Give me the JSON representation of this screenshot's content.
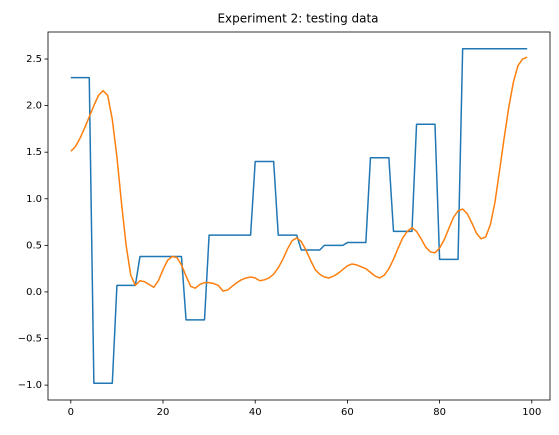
{
  "chart_data": {
    "type": "line",
    "title": "Experiment 2: testing data",
    "x": [
      0,
      1,
      2,
      3,
      4,
      5,
      6,
      7,
      8,
      9,
      10,
      11,
      12,
      13,
      14,
      15,
      16,
      17,
      18,
      19,
      20,
      21,
      22,
      23,
      24,
      25,
      26,
      27,
      28,
      29,
      30,
      31,
      32,
      33,
      34,
      35,
      36,
      37,
      38,
      39,
      40,
      41,
      42,
      43,
      44,
      45,
      46,
      47,
      48,
      49,
      50,
      51,
      52,
      53,
      54,
      55,
      56,
      57,
      58,
      59,
      60,
      61,
      62,
      63,
      64,
      65,
      66,
      67,
      68,
      69,
      70,
      71,
      72,
      73,
      74,
      75,
      76,
      77,
      78,
      79,
      80,
      81,
      82,
      83,
      84,
      85,
      86,
      87,
      88,
      89,
      90,
      91,
      92,
      93,
      94,
      95,
      96,
      97,
      98,
      99
    ],
    "series": [
      {
        "color": "#1f77b4",
        "values": [
          2.3,
          2.3,
          2.3,
          2.3,
          2.3,
          -0.98,
          -0.98,
          -0.98,
          -0.98,
          -0.98,
          0.07,
          0.07,
          0.07,
          0.07,
          0.07,
          0.38,
          0.38,
          0.38,
          0.38,
          0.38,
          0.38,
          0.38,
          0.38,
          0.38,
          0.38,
          -0.3,
          -0.3,
          -0.3,
          -0.3,
          -0.3,
          0.61,
          0.61,
          0.61,
          0.61,
          0.61,
          0.61,
          0.61,
          0.61,
          0.61,
          0.61,
          1.4,
          1.4,
          1.4,
          1.4,
          1.4,
          0.61,
          0.61,
          0.61,
          0.61,
          0.61,
          0.45,
          0.45,
          0.45,
          0.45,
          0.45,
          0.5,
          0.5,
          0.5,
          0.5,
          0.5,
          0.53,
          0.53,
          0.53,
          0.53,
          0.53,
          1.44,
          1.44,
          1.44,
          1.44,
          1.44,
          0.65,
          0.65,
          0.65,
          0.65,
          0.65,
          1.8,
          1.8,
          1.8,
          1.8,
          1.8,
          0.35,
          0.35,
          0.35,
          0.35,
          0.35,
          2.61,
          2.61,
          2.61,
          2.61,
          2.61,
          2.61,
          2.61,
          2.61,
          2.61,
          2.61,
          2.61,
          2.61,
          2.61,
          2.61,
          2.61
        ]
      },
      {
        "color": "#ff7f0e",
        "values": [
          1.51,
          1.56,
          1.65,
          1.76,
          1.88,
          2.0,
          2.11,
          2.16,
          2.11,
          1.85,
          1.45,
          0.95,
          0.5,
          0.18,
          0.07,
          0.12,
          0.11,
          0.08,
          0.05,
          0.12,
          0.24,
          0.34,
          0.38,
          0.37,
          0.29,
          0.17,
          0.06,
          0.04,
          0.08,
          0.1,
          0.1,
          0.09,
          0.07,
          0.01,
          0.02,
          0.06,
          0.1,
          0.13,
          0.15,
          0.16,
          0.15,
          0.12,
          0.13,
          0.15,
          0.19,
          0.26,
          0.35,
          0.46,
          0.55,
          0.58,
          0.54,
          0.45,
          0.34,
          0.24,
          0.19,
          0.16,
          0.15,
          0.17,
          0.2,
          0.24,
          0.28,
          0.3,
          0.29,
          0.27,
          0.25,
          0.21,
          0.17,
          0.15,
          0.18,
          0.25,
          0.35,
          0.47,
          0.58,
          0.65,
          0.69,
          0.65,
          0.57,
          0.48,
          0.43,
          0.42,
          0.47,
          0.56,
          0.68,
          0.8,
          0.87,
          0.89,
          0.84,
          0.74,
          0.63,
          0.57,
          0.59,
          0.72,
          0.96,
          1.3,
          1.65,
          1.98,
          2.25,
          2.43,
          2.5,
          2.52
        ]
      }
    ],
    "xlim": [
      -4.95,
      103.95
    ],
    "xticks": [
      0,
      20,
      40,
      60,
      80,
      100
    ],
    "ylim": [
      -1.16,
      2.79
    ],
    "yticks": [
      {
        "value": -1,
        "label": "−1.0"
      },
      {
        "value": -0.5,
        "label": "−0.5"
      },
      {
        "value": 0,
        "label": "0.0"
      },
      0.5,
      {
        "value": 1,
        "label": "1.0"
      },
      1.5,
      {
        "value": 2,
        "label": "2.0"
      },
      2.5
    ],
    "grid": false
  }
}
